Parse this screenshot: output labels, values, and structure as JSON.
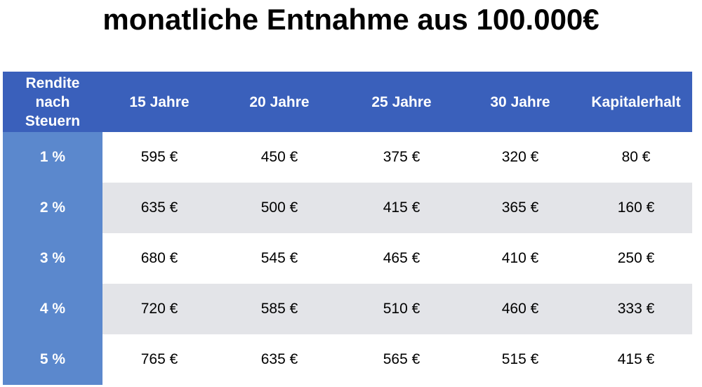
{
  "title": "monatliche Entnahme aus 100.000€",
  "header": {
    "rate_label_lines": [
      "Rendite",
      "nach",
      "Steuern"
    ],
    "columns": [
      "15 Jahre",
      "20 Jahre",
      "25 Jahre",
      "30 Jahre",
      "Kapitalerhalt"
    ]
  },
  "rows": [
    {
      "rate": "1 %",
      "values": [
        "595 €",
        "450 €",
        "375 €",
        "320 €",
        "80 €"
      ]
    },
    {
      "rate": "2 %",
      "values": [
        "635 €",
        "500 €",
        "415 €",
        "365 €",
        "160 €"
      ]
    },
    {
      "rate": "3 %",
      "values": [
        "680 €",
        "545 €",
        "465 €",
        "410 €",
        "250 €"
      ]
    },
    {
      "rate": "4 %",
      "values": [
        "720 €",
        "585 €",
        "510 €",
        "460 €",
        "333 €"
      ]
    },
    {
      "rate": "5 %",
      "values": [
        "765 €",
        "635 €",
        "565 €",
        "515 €",
        "415 €"
      ]
    }
  ],
  "colors": {
    "header_bg": "#3a60bb",
    "rate_column_bg": "#5b88cd",
    "stripe_bg": "#e3e4e8"
  }
}
